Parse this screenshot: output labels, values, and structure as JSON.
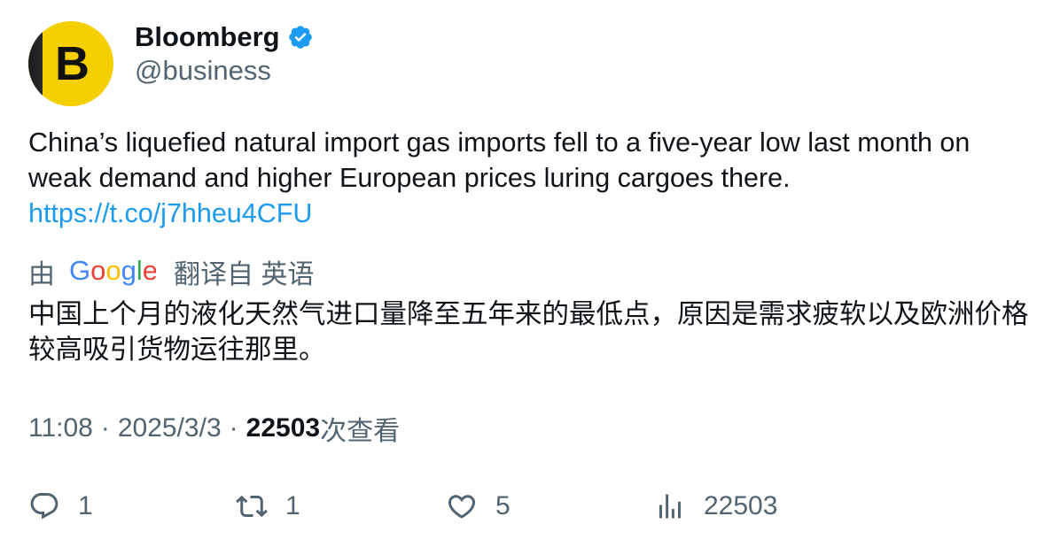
{
  "author": {
    "display_name": "Bloomberg",
    "handle": "@business",
    "avatar_letter": "B",
    "verified": true
  },
  "tweet": {
    "text": "China’s liquefied natural import gas imports fell to a five-year low last month on weak demand and higher European prices luring cargoes there.",
    "link": "https://t.co/j7hheu4CFU"
  },
  "translation": {
    "prefix": "由",
    "provider": "Google",
    "suffix": "翻译自 英语",
    "text": "中国上个月的液化天然气进口量降至五年来的最低点，原因是需求疲软以及欧洲价格较高吸引货物运往那里。"
  },
  "meta": {
    "time": "11:08",
    "date": "2025/3/3",
    "views": "22503",
    "views_label": "次查看"
  },
  "actions": {
    "replies": "1",
    "retweets": "1",
    "likes": "5",
    "views": "22503"
  },
  "colors": {
    "accent": "#1d9bf0",
    "muted": "#536471",
    "avatar_bg": "#f5d000"
  }
}
